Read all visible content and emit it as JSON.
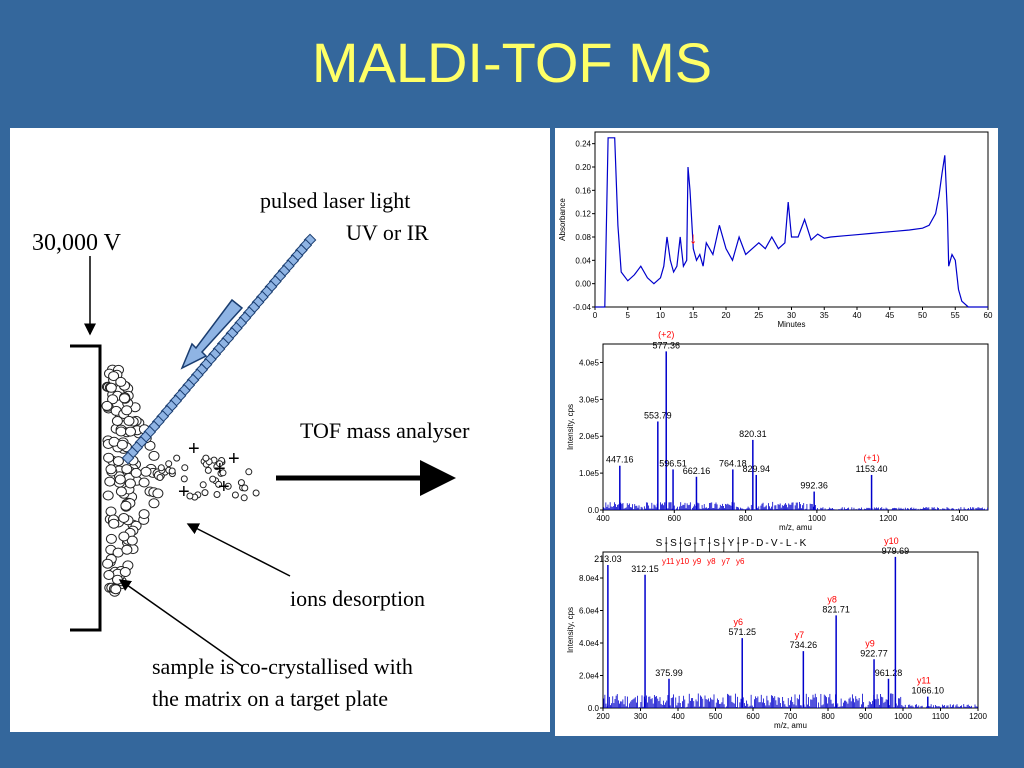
{
  "slide": {
    "title": "MALDI-TOF MS"
  },
  "colors": {
    "background": "#34679c",
    "title": "#ffff66",
    "plot": "#0000cc",
    "annotation": "#ff0000"
  },
  "schematic": {
    "voltage_label": "30,000 V",
    "laser_label_line1": "pulsed laser light",
    "laser_label_line2": "UV or IR",
    "analyser_label": "TOF mass analyser",
    "desorption_label": "ions desorption",
    "sample_label_line1": "sample is co-crystallised with",
    "sample_label_line2": "the matrix on a target plate",
    "ion_symbol": "+"
  },
  "chart_data": [
    {
      "type": "line",
      "xlabel": "Minutes",
      "ylabel": "Absorbance",
      "xlim": [
        0,
        60
      ],
      "ylim": [
        -0.04,
        0.26
      ],
      "x_ticks": [
        0,
        5,
        10,
        15,
        20,
        25,
        30,
        35,
        40,
        45,
        50,
        55,
        60
      ],
      "y_ticks": [
        -0.04,
        0.0,
        0.04,
        0.08,
        0.12,
        0.16,
        0.2,
        0.24
      ],
      "y_tick_labels": [
        "-0.04",
        "0.00",
        "0.04",
        "0.08",
        "0.12",
        "0.16",
        "0.20",
        "0.24"
      ],
      "x": [
        0,
        0.5,
        1.5,
        2,
        2.5,
        3,
        3.5,
        4,
        5,
        6,
        7,
        8,
        9,
        10,
        10.5,
        11,
        11.5,
        12,
        12.5,
        13,
        13.5,
        14,
        14.2,
        14.5,
        15,
        15.5,
        16,
        16.5,
        17,
        18,
        19,
        20,
        21,
        22,
        23,
        24,
        25,
        26,
        27,
        28,
        29,
        29.5,
        30,
        31,
        32,
        33,
        34,
        35,
        36,
        38,
        40,
        42,
        44,
        46,
        48,
        50,
        51,
        52,
        52.5,
        53,
        53.4,
        53.8,
        54,
        54.5,
        55,
        55.5,
        56,
        57,
        58,
        59,
        60
      ],
      "y": [
        -0.04,
        -0.04,
        -0.04,
        0.25,
        0.25,
        0.25,
        0.1,
        0.02,
        0.005,
        0.015,
        0.03,
        0.01,
        0.0,
        0.01,
        0.03,
        0.08,
        0.04,
        0.02,
        0.03,
        0.08,
        0.03,
        0.04,
        0.2,
        0.16,
        0.06,
        0.04,
        0.05,
        0.03,
        0.07,
        0.05,
        0.1,
        0.06,
        0.04,
        0.08,
        0.05,
        0.06,
        0.07,
        0.06,
        0.08,
        0.06,
        0.07,
        0.14,
        0.08,
        0.08,
        0.11,
        0.075,
        0.085,
        0.078,
        0.08,
        0.082,
        0.084,
        0.086,
        0.088,
        0.09,
        0.092,
        0.095,
        0.1,
        0.12,
        0.15,
        0.19,
        0.22,
        0.12,
        0.03,
        0.05,
        0.04,
        -0.01,
        -0.03,
        -0.04,
        -0.04,
        -0.04,
        -0.04
      ],
      "annotations": [
        {
          "x": 15,
          "y": 0.055,
          "text": "↓"
        }
      ]
    },
    {
      "type": "bar",
      "xlabel": "m/z, amu",
      "ylabel": "Intensity, cps",
      "xlim": [
        400,
        1480
      ],
      "ylim": [
        0,
        450000
      ],
      "x_ticks": [
        400,
        600,
        800,
        1000,
        1200,
        1400
      ],
      "y_ticks": [
        0,
        100000,
        200000,
        300000,
        400000
      ],
      "y_tick_labels": [
        "0.0",
        "1.0e5",
        "2.0e5",
        "3.0e5",
        "4.0e5"
      ],
      "x": [
        447.16,
        553.79,
        577.36,
        596.51,
        662.16,
        764.18,
        820.31,
        829.94,
        992.36,
        1153.4
      ],
      "values": [
        120000,
        240000,
        430000,
        110000,
        90000,
        110000,
        190000,
        95000,
        50000,
        95000
      ],
      "labels": [
        "447.16",
        "553.79",
        "577.36",
        "596.51",
        "662.16",
        "764.18",
        "820.31",
        "829.94",
        "992.36",
        "1153.40"
      ],
      "annotations": [
        {
          "x": 577.36,
          "text": "(+2)"
        },
        {
          "x": 1153.4,
          "text": "(+1)"
        }
      ]
    },
    {
      "type": "bar",
      "xlabel": "m/z, amu",
      "ylabel": "Intensity, cps",
      "xlim": [
        200,
        1200
      ],
      "ylim": [
        0,
        96000
      ],
      "x_ticks": [
        200,
        300,
        400,
        500,
        600,
        700,
        800,
        900,
        1000,
        1100,
        1200
      ],
      "y_ticks": [
        0,
        20000,
        40000,
        60000,
        80000
      ],
      "y_tick_labels": [
        "0.0",
        "2.0e4",
        "4.0e4",
        "6.0e4",
        "8.0e4"
      ],
      "x": [
        213.03,
        312.15,
        375.99,
        571.25,
        734.26,
        821.71,
        922.77,
        961.28,
        979.69,
        1066.1
      ],
      "values": [
        88000,
        82000,
        18000,
        43000,
        35000,
        57000,
        30000,
        18000,
        93000,
        7000
      ],
      "labels": [
        "213.03",
        "312.15",
        "375.99",
        "571.25",
        "734.26",
        "821.71",
        "922.77",
        "961.28",
        "979.69",
        "1066.10"
      ],
      "ion_labels": [
        "",
        "",
        "",
        "y6",
        "y7",
        "y8",
        "y9",
        "",
        "y10",
        "y11"
      ],
      "sequence": [
        "S",
        "S",
        "G",
        "T",
        "S",
        "Y",
        "P",
        "D",
        "V",
        "L",
        "K"
      ],
      "sequence_ions": [
        "y11",
        "y10",
        "y9",
        "y8",
        "y7",
        "y6"
      ]
    }
  ]
}
